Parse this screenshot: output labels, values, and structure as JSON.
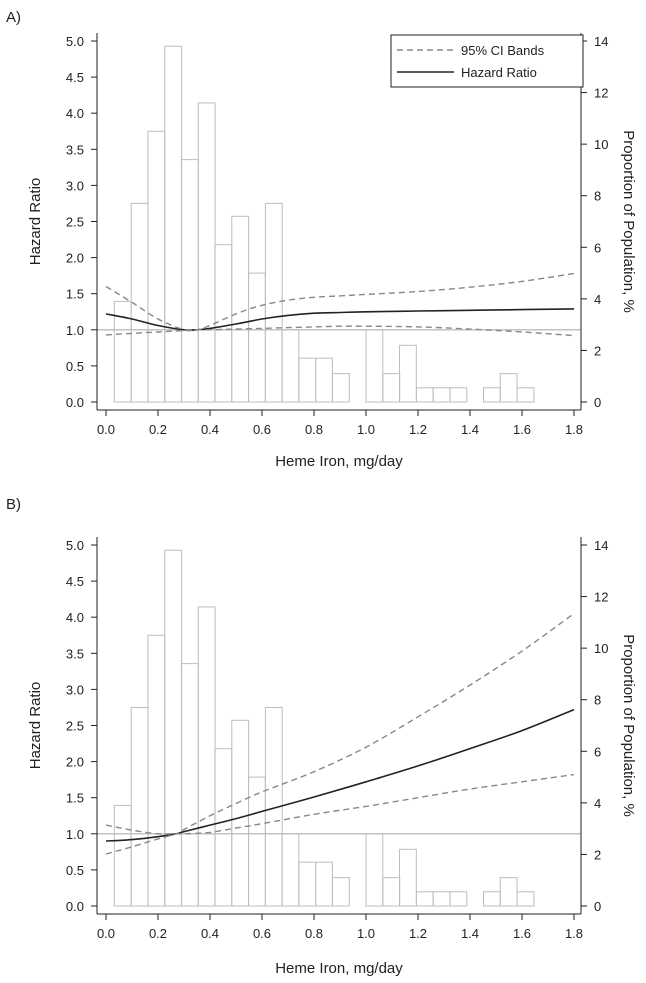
{
  "chart_data": [
    {
      "type": "line",
      "panel_label": "A)",
      "xlabel": "Heme Iron, mg/day",
      "ylabel": "Hazard Ratio",
      "y2label": "Proportion of Population, %",
      "xlim": [
        0,
        1.8
      ],
      "ylim": [
        0,
        5.0
      ],
      "y2lim": [
        0,
        14
      ],
      "xticks": [
        0.0,
        0.2,
        0.4,
        0.6,
        0.8,
        1.0,
        1.2,
        1.4,
        1.6,
        1.8
      ],
      "xtick_labels": [
        "0.0",
        "0.2",
        "0.4",
        "0.6",
        "0.8",
        "1.0",
        "1.2",
        "1.4",
        "1.6",
        "1.8"
      ],
      "yticks": [
        0.0,
        0.5,
        1.0,
        1.5,
        2.0,
        2.5,
        3.0,
        3.5,
        4.0,
        4.5,
        5.0
      ],
      "ytick_labels": [
        "0.0",
        "0.5",
        "1.0",
        "1.5",
        "2.0",
        "2.5",
        "3.0",
        "3.5",
        "4.0",
        "4.5",
        "5.0"
      ],
      "y2ticks": [
        0,
        2,
        4,
        6,
        8,
        10,
        12,
        14
      ],
      "y2tick_labels": [
        "0",
        "2",
        "4",
        "6",
        "8",
        "10",
        "12",
        "14"
      ],
      "reference_line": 1.0,
      "legend": {
        "placement": "top-right",
        "entries": [
          {
            "label": "95% CI Bands",
            "style": "dashed",
            "color": "#888888"
          },
          {
            "label": "Hazard Ratio",
            "style": "solid",
            "color": "#222222"
          }
        ]
      },
      "histogram": {
        "bin_width": 0.0645,
        "bins": [
          {
            "start": 0.032,
            "value": 3.9
          },
          {
            "start": 0.097,
            "value": 7.7
          },
          {
            "start": 0.161,
            "value": 10.5
          },
          {
            "start": 0.226,
            "value": 13.8
          },
          {
            "start": 0.29,
            "value": 9.4
          },
          {
            "start": 0.355,
            "value": 11.6
          },
          {
            "start": 0.419,
            "value": 6.1
          },
          {
            "start": 0.484,
            "value": 7.2
          },
          {
            "start": 0.548,
            "value": 5.0
          },
          {
            "start": 0.613,
            "value": 7.7
          },
          {
            "start": 0.677,
            "value": 2.8
          },
          {
            "start": 0.742,
            "value": 1.7
          },
          {
            "start": 0.806,
            "value": 1.7
          },
          {
            "start": 0.871,
            "value": 1.1
          },
          {
            "start": 1.0,
            "value": 2.8
          },
          {
            "start": 1.065,
            "value": 1.1
          },
          {
            "start": 1.129,
            "value": 2.2
          },
          {
            "start": 1.194,
            "value": 0.55
          },
          {
            "start": 1.258,
            "value": 0.55
          },
          {
            "start": 1.323,
            "value": 0.55
          },
          {
            "start": 1.452,
            "value": 0.55
          },
          {
            "start": 1.516,
            "value": 1.1
          },
          {
            "start": 1.581,
            "value": 0.55
          }
        ]
      },
      "series": [
        {
          "role": "hr",
          "x": [
            0.0,
            0.1,
            0.2,
            0.3,
            0.35,
            0.4,
            0.5,
            0.6,
            0.7,
            0.8,
            0.9,
            1.0,
            1.2,
            1.4,
            1.6,
            1.8
          ],
          "y": [
            1.22,
            1.15,
            1.06,
            1.0,
            1.0,
            1.02,
            1.08,
            1.15,
            1.2,
            1.23,
            1.24,
            1.25,
            1.26,
            1.27,
            1.28,
            1.29
          ]
        },
        {
          "role": "ci_upper",
          "x": [
            0.0,
            0.1,
            0.2,
            0.3,
            0.35,
            0.4,
            0.5,
            0.6,
            0.7,
            0.8,
            0.9,
            1.0,
            1.2,
            1.4,
            1.6,
            1.8
          ],
          "y": [
            1.6,
            1.38,
            1.15,
            1.0,
            1.0,
            1.06,
            1.22,
            1.34,
            1.41,
            1.45,
            1.47,
            1.49,
            1.53,
            1.59,
            1.67,
            1.78
          ]
        },
        {
          "role": "ci_lower",
          "x": [
            0.0,
            0.1,
            0.2,
            0.3,
            0.35,
            0.4,
            0.5,
            0.6,
            0.7,
            0.8,
            0.9,
            1.0,
            1.2,
            1.4,
            1.6,
            1.8
          ],
          "y": [
            0.93,
            0.95,
            0.97,
            0.99,
            1.0,
            1.0,
            1.01,
            1.02,
            1.03,
            1.04,
            1.05,
            1.05,
            1.04,
            1.01,
            0.97,
            0.92
          ]
        }
      ]
    },
    {
      "type": "line",
      "panel_label": "B)",
      "xlabel": "Heme Iron, mg/day",
      "ylabel": "Hazard Ratio",
      "y2label": "Proportion of Population, %",
      "xlim": [
        0,
        1.8
      ],
      "ylim": [
        0,
        5.0
      ],
      "y2lim": [
        0,
        14
      ],
      "xticks": [
        0.0,
        0.2,
        0.4,
        0.6,
        0.8,
        1.0,
        1.2,
        1.4,
        1.6,
        1.8
      ],
      "xtick_labels": [
        "0.0",
        "0.2",
        "0.4",
        "0.6",
        "0.8",
        "1.0",
        "1.2",
        "1.4",
        "1.6",
        "1.8"
      ],
      "yticks": [
        0.0,
        0.5,
        1.0,
        1.5,
        2.0,
        2.5,
        3.0,
        3.5,
        4.0,
        4.5,
        5.0
      ],
      "ytick_labels": [
        "0.0",
        "0.5",
        "1.0",
        "1.5",
        "2.0",
        "2.5",
        "3.0",
        "3.5",
        "4.0",
        "4.5",
        "5.0"
      ],
      "y2ticks": [
        0,
        2,
        4,
        6,
        8,
        10,
        12,
        14
      ],
      "y2tick_labels": [
        "0",
        "2",
        "4",
        "6",
        "8",
        "10",
        "12",
        "14"
      ],
      "reference_line": 1.0,
      "histogram": {
        "bin_width": 0.0645,
        "bins": [
          {
            "start": 0.032,
            "value": 3.9
          },
          {
            "start": 0.097,
            "value": 7.7
          },
          {
            "start": 0.161,
            "value": 10.5
          },
          {
            "start": 0.226,
            "value": 13.8
          },
          {
            "start": 0.29,
            "value": 9.4
          },
          {
            "start": 0.355,
            "value": 11.6
          },
          {
            "start": 0.419,
            "value": 6.1
          },
          {
            "start": 0.484,
            "value": 7.2
          },
          {
            "start": 0.548,
            "value": 5.0
          },
          {
            "start": 0.613,
            "value": 7.7
          },
          {
            "start": 0.677,
            "value": 2.8
          },
          {
            "start": 0.742,
            "value": 1.7
          },
          {
            "start": 0.806,
            "value": 1.7
          },
          {
            "start": 0.871,
            "value": 1.1
          },
          {
            "start": 1.0,
            "value": 2.8
          },
          {
            "start": 1.065,
            "value": 1.1
          },
          {
            "start": 1.129,
            "value": 2.2
          },
          {
            "start": 1.194,
            "value": 0.55
          },
          {
            "start": 1.258,
            "value": 0.55
          },
          {
            "start": 1.323,
            "value": 0.55
          },
          {
            "start": 1.452,
            "value": 0.55
          },
          {
            "start": 1.516,
            "value": 1.1
          },
          {
            "start": 1.581,
            "value": 0.55
          }
        ]
      },
      "series": [
        {
          "role": "hr",
          "x": [
            0.0,
            0.1,
            0.2,
            0.27,
            0.3,
            0.4,
            0.5,
            0.6,
            0.8,
            1.0,
            1.2,
            1.4,
            1.6,
            1.8
          ],
          "y": [
            0.9,
            0.92,
            0.96,
            1.0,
            1.03,
            1.12,
            1.21,
            1.31,
            1.51,
            1.72,
            1.94,
            2.18,
            2.43,
            2.72
          ]
        },
        {
          "role": "ci_upper",
          "x": [
            0.0,
            0.1,
            0.2,
            0.27,
            0.3,
            0.4,
            0.5,
            0.6,
            0.8,
            1.0,
            1.2,
            1.4,
            1.6,
            1.8
          ],
          "y": [
            0.72,
            0.82,
            0.93,
            1.0,
            1.06,
            1.25,
            1.42,
            1.58,
            1.86,
            2.2,
            2.62,
            3.06,
            3.53,
            4.05
          ]
        },
        {
          "role": "ci_lower",
          "x": [
            0.0,
            0.1,
            0.2,
            0.27,
            0.3,
            0.4,
            0.5,
            0.6,
            0.8,
            1.0,
            1.2,
            1.4,
            1.6,
            1.8
          ],
          "y": [
            1.12,
            1.05,
            1.0,
            1.0,
            1.0,
            1.02,
            1.08,
            1.14,
            1.27,
            1.38,
            1.5,
            1.62,
            1.72,
            1.82
          ]
        }
      ]
    }
  ]
}
